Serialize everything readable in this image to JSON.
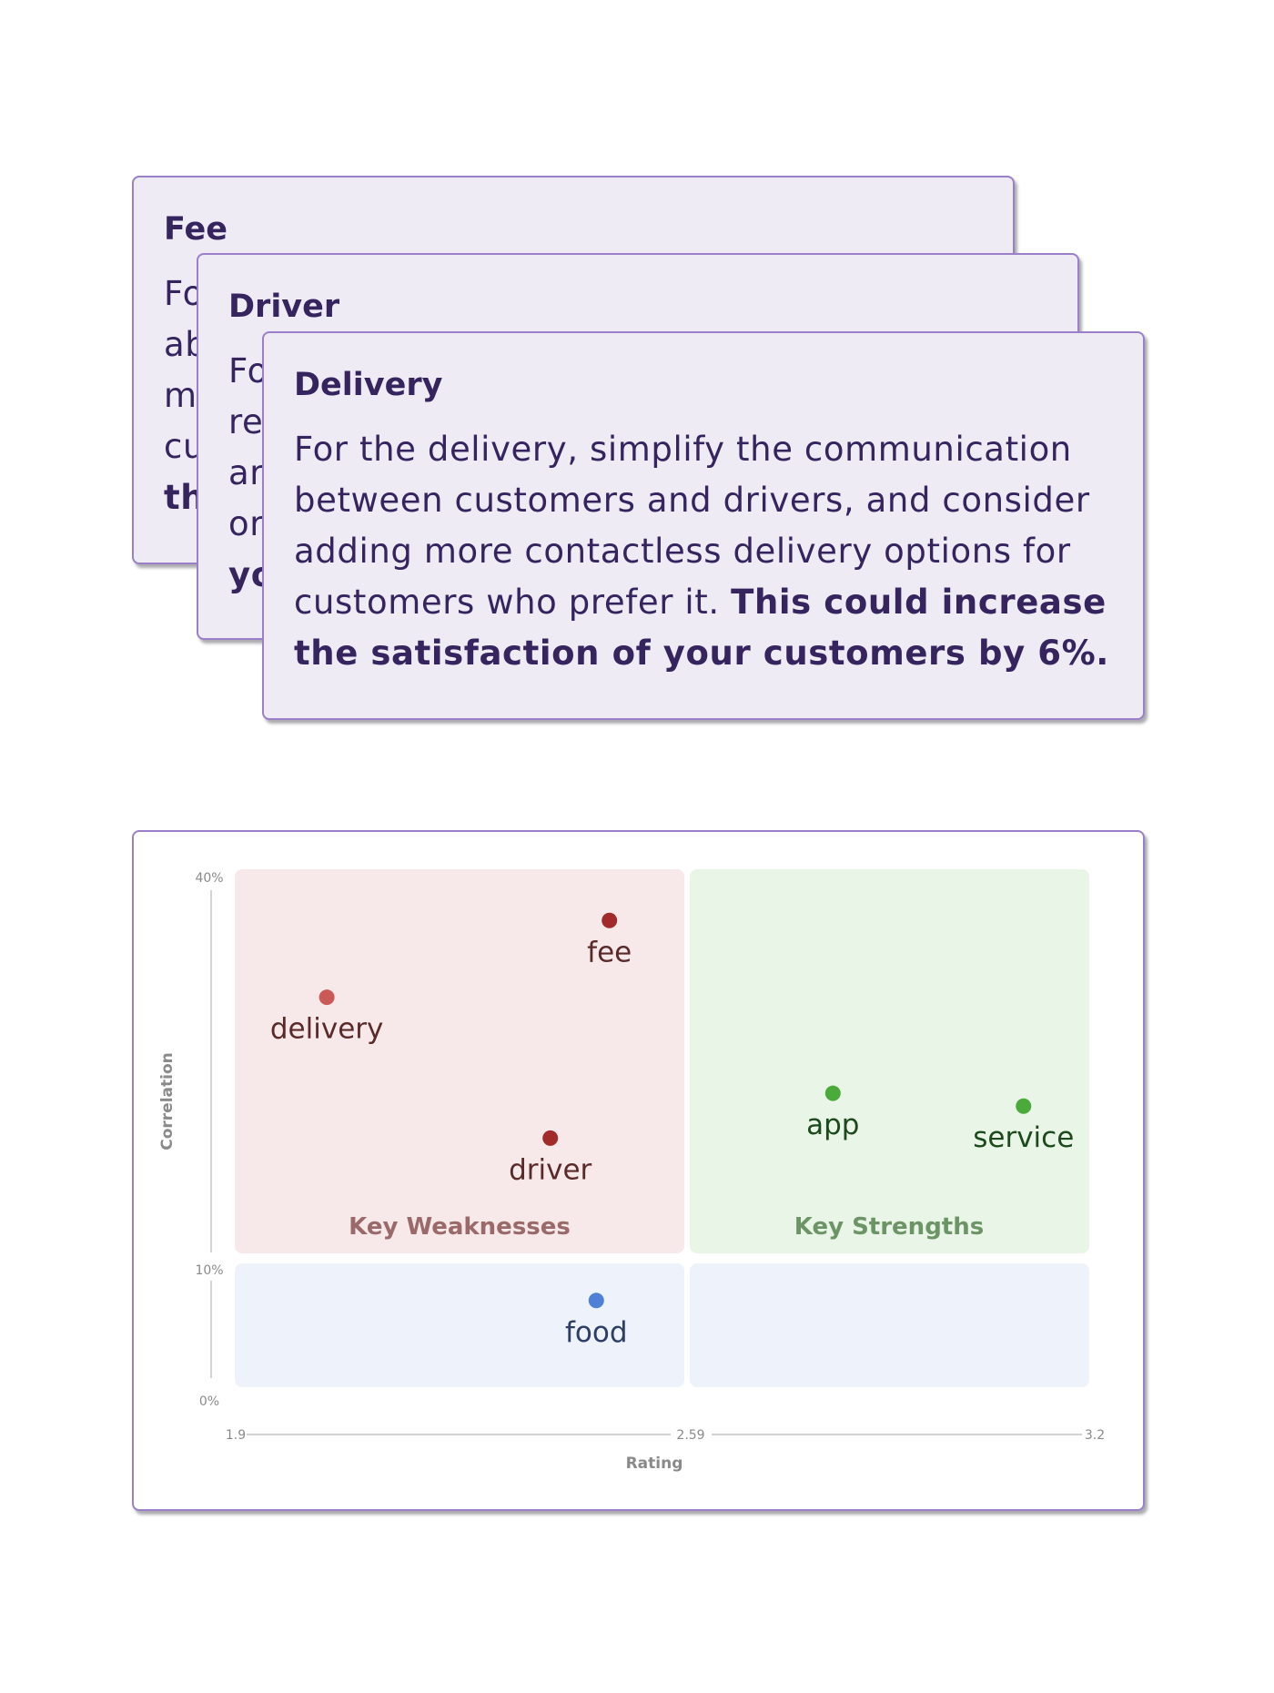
{
  "cards": {
    "fee": {
      "title": "Fee",
      "text_lines": [
        "Fo",
        "ab",
        "m",
        "cu"
      ],
      "bold_line": "th"
    },
    "driver": {
      "title": "Driver",
      "text_lines": [
        "Fo",
        "re",
        "ar",
        "or"
      ],
      "bold_line": "yo"
    },
    "delivery": {
      "title": "Delivery",
      "text": "For the delivery, simplify the communication between customers and drivers, and consider adding more contactless delivery options for customers who prefer it.",
      "bold_text": "This could increase the satisfaction of your customers by 6%."
    }
  },
  "chart_data": {
    "type": "scatter",
    "title": "",
    "xlabel": "Rating",
    "ylabel": "Correlation",
    "x_ticks": [
      "1.9",
      "2.59",
      "3.2"
    ],
    "y_ticks": [
      "40%",
      "10%",
      "0%"
    ],
    "xlim": [
      1.9,
      3.2
    ],
    "ylim_labels": [
      "0%",
      "10%",
      "40%"
    ],
    "points": [
      {
        "label": "fee",
        "x": 2.47,
        "y": 36,
        "color": "#a12a2a",
        "label_color": "#5a2a2a"
      },
      {
        "label": "delivery",
        "x": 2.04,
        "y": 30,
        "color": "#c95a55",
        "label_color": "#5a2a2a"
      },
      {
        "label": "driver",
        "x": 2.38,
        "y": 19,
        "color": "#a12a2a",
        "label_color": "#5a2a2a"
      },
      {
        "label": "app",
        "x": 2.81,
        "y": 22.5,
        "color": "#4aaa3a",
        "label_color": "#1d4a1d"
      },
      {
        "label": "service",
        "x": 3.1,
        "y": 21.5,
        "color": "#4aaa3a",
        "label_color": "#1d4a1d"
      },
      {
        "label": "food",
        "x": 2.45,
        "y": 7,
        "color": "#4f7fd6",
        "label_color": "#2c3d66"
      }
    ],
    "quadrants": [
      {
        "label": "Key Weaknesses",
        "fill": "#f7e9e9",
        "text_color": "#9a6a6a"
      },
      {
        "label": "Key Strengths",
        "fill": "#e9f5e6",
        "text_color": "#6d9466"
      },
      {
        "label": "",
        "fill": "#edf2fb"
      },
      {
        "label": "",
        "fill": "#edf2fb"
      }
    ]
  }
}
